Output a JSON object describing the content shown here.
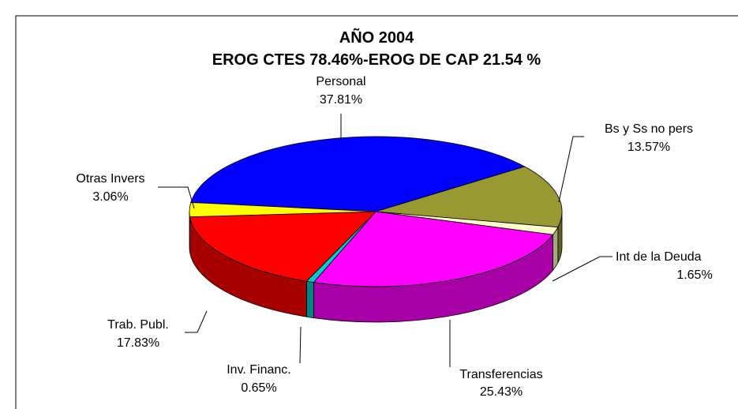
{
  "chart_data": {
    "type": "pie",
    "title": "AÑO 2004",
    "subtitle": "EROG CTES 78.46%-EROG DE CAP 21.54 %",
    "categories": [
      "Personal",
      "Bs y Ss no pers",
      "Int de la Deuda",
      "Transferencias",
      "Inv. Financ.",
      "Trab. Publ.",
      "Otras Invers"
    ],
    "values": [
      37.81,
      13.57,
      1.65,
      25.43,
      0.65,
      17.83,
      3.06
    ],
    "value_labels": [
      "37.81%",
      "13.57%",
      "1.65%",
      "25.43%",
      "0.65%",
      "17.83%",
      "3.06%"
    ],
    "colors": [
      "#0000ff",
      "#999933",
      "#ffffcc",
      "#ff00ff",
      "#00cccc",
      "#ff0000",
      "#ffff00"
    ]
  }
}
